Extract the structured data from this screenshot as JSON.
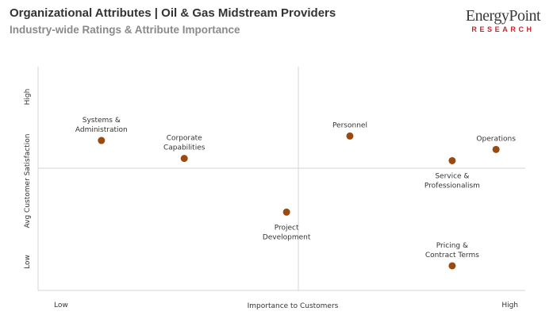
{
  "header": {
    "title": "Organizational Attributes | Oil & Gas Midstream Providers",
    "subtitle": "Industry-wide Ratings & Attribute Importance"
  },
  "logo": {
    "line1": "EnergyPoint",
    "line2": "RESEARCH",
    "line1_color": "#3a3a3a",
    "line2_color": "#c0272d"
  },
  "chart_data": {
    "type": "scatter",
    "xlabel": "Importance to Customers",
    "ylabel": "Avg Customer Satisfaction",
    "x_low_label": "Low",
    "x_high_label": "High",
    "y_low_label": "Low",
    "y_high_label": "High",
    "xlim": [
      0,
      1
    ],
    "ylim": [
      0,
      1
    ],
    "grid": false,
    "point_color": "#9a4a0e",
    "points": [
      {
        "name": [
          "Systems &",
          "Administration"
        ],
        "x": 0.13,
        "y": 0.67
      },
      {
        "name": [
          "Corporate",
          "Capabilities"
        ],
        "x": 0.3,
        "y": 0.59
      },
      {
        "name": [
          "Project",
          "Development"
        ],
        "x": 0.51,
        "y": 0.35
      },
      {
        "name": [
          "Personnel"
        ],
        "x": 0.64,
        "y": 0.69
      },
      {
        "name": [
          "Operations"
        ],
        "x": 0.94,
        "y": 0.63
      },
      {
        "name": [
          "Service &",
          "Professionalism"
        ],
        "x": 0.85,
        "y": 0.58
      },
      {
        "name": [
          "Pricing &",
          "Contract Terms"
        ],
        "x": 0.85,
        "y": 0.11
      }
    ]
  }
}
